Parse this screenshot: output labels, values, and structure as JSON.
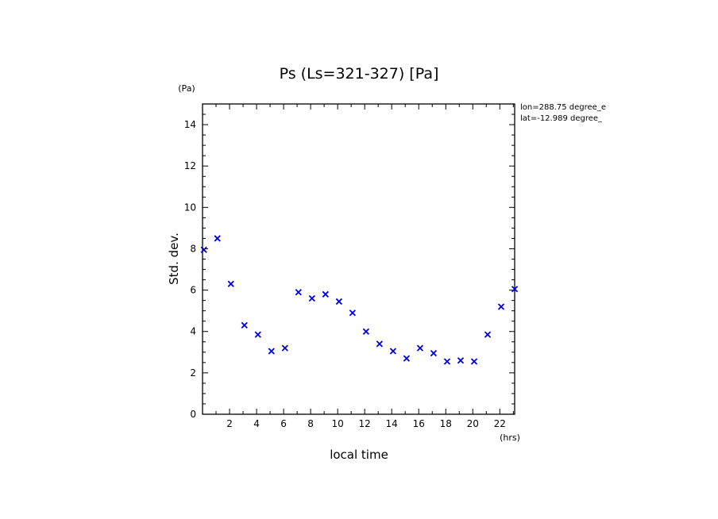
{
  "chart_data": {
    "type": "scatter",
    "title": "Ps (Ls=321-327) [Pa]",
    "xlabel": "local time",
    "ylabel": "Std. dev.",
    "x_unit": "(hrs)",
    "y_unit": "(Pa)",
    "annotations": [
      "lon=288.75 degree_e",
      "lat=-12.989 degree_"
    ],
    "xlim": [
      0,
      23.1
    ],
    "ylim": [
      0,
      15
    ],
    "xticks": [
      "2",
      "4",
      "6",
      "8",
      "10",
      "12",
      "14",
      "16",
      "18",
      "20",
      "22"
    ],
    "yticks": [
      "0",
      "2",
      "4",
      "6",
      "8",
      "10",
      "12",
      "14"
    ],
    "marker": "x",
    "marker_color": "#0000dd",
    "grid": false,
    "series": [
      {
        "x": [
          0.1,
          1.1,
          2.1,
          3.1,
          4.1,
          5.1,
          6.1,
          7.1,
          8.1,
          9.1,
          10.1,
          11.1,
          12.1,
          13.1,
          14.1,
          15.1,
          16.1,
          17.1,
          18.1,
          19.1,
          20.1,
          21.1,
          22.1,
          23.1
        ],
        "y": [
          7.95,
          8.5,
          6.3,
          4.3,
          3.85,
          3.05,
          3.2,
          5.9,
          5.6,
          5.8,
          5.45,
          4.9,
          4.0,
          3.4,
          3.05,
          2.7,
          3.2,
          2.95,
          2.55,
          2.6,
          2.55,
          3.85,
          5.2,
          6.05
        ]
      }
    ]
  }
}
